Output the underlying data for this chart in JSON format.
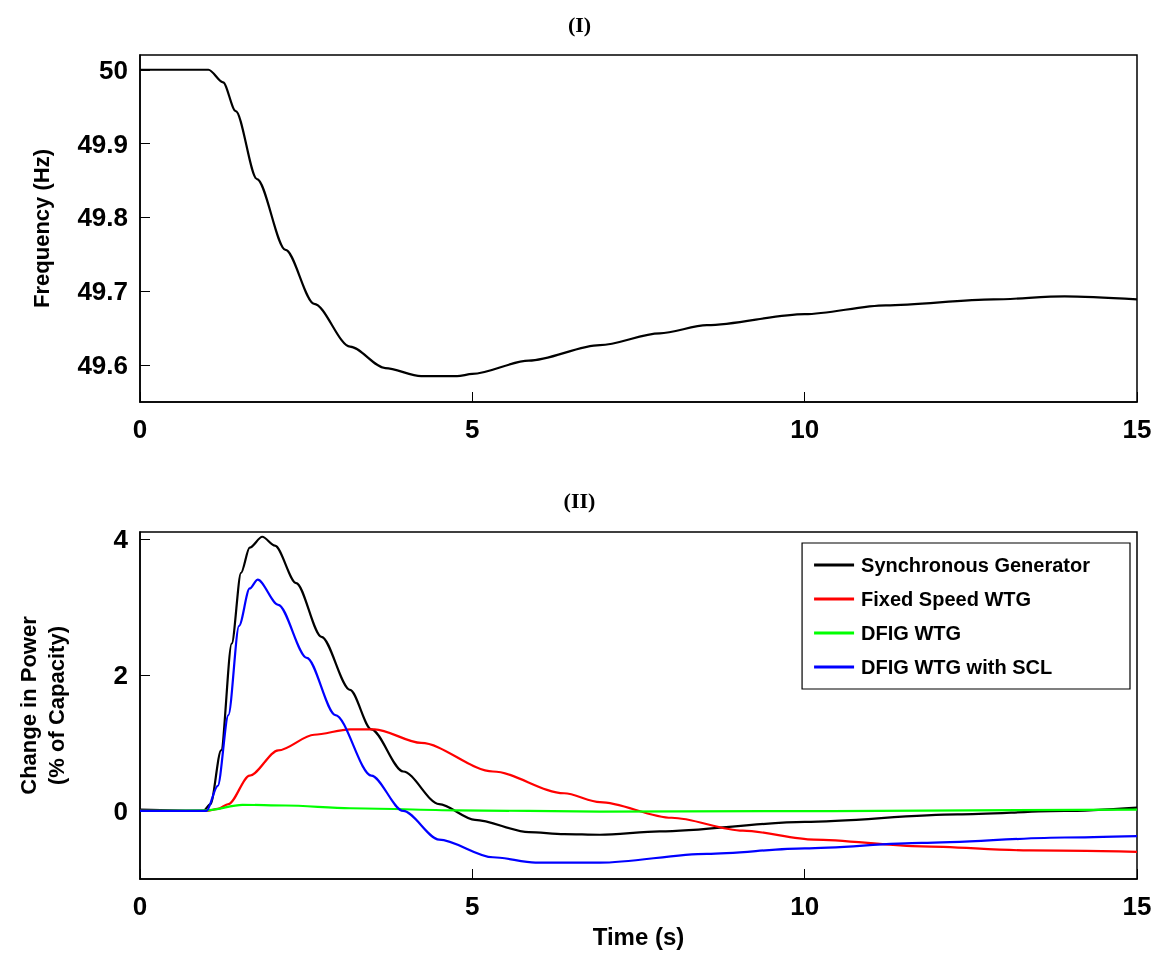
{
  "chart_data": [
    {
      "type": "line",
      "title": "(I)",
      "ylabel": "Frequency (Hz)",
      "xlim": [
        0,
        15
      ],
      "xticks": [
        0,
        5,
        10,
        15
      ],
      "ylim": [
        49.55,
        50.02
      ],
      "yticks": [
        49.6,
        49.7,
        49.8,
        49.9,
        {
          "value": 50,
          "label": "50"
        }
      ],
      "grid": false,
      "legend": false,
      "series": [
        {
          "color": "#000000",
          "x": [
            0,
            1.03,
            1.25,
            1.44,
            1.76,
            2.19,
            2.62,
            3.16,
            3.69,
            4.23,
            4.77,
            5.0,
            5.85,
            6.92,
            7.82,
            8.53,
            10.0,
            11.22,
            12.84,
            13.91,
            15.0
          ],
          "values": [
            50.0,
            50.0,
            49.983,
            49.944,
            49.852,
            49.756,
            49.683,
            49.625,
            49.596,
            49.585,
            49.585,
            49.588,
            49.606,
            49.627,
            49.643,
            49.654,
            49.669,
            49.681,
            49.689,
            49.693,
            49.689
          ]
        }
      ]
    },
    {
      "type": "line",
      "title": "(II)",
      "xlabel": "Time (s)",
      "ylabel": "Change in Power (% of Capacity)",
      "xlim": [
        0,
        15
      ],
      "xticks": [
        0,
        5,
        10,
        15
      ],
      "ylim": [
        -1,
        4.1
      ],
      "yticks": [
        0,
        2,
        4
      ],
      "grid": false,
      "legend": "top right",
      "series": [
        {
          "name": "Synchronous Generator",
          "color": "#000000",
          "x": [
            0,
            0.95,
            1.06,
            1.22,
            1.38,
            1.52,
            1.65,
            1.84,
            2.03,
            2.35,
            2.73,
            3.16,
            3.48,
            3.96,
            4.5,
            5.04,
            5.85,
            6.38,
            6.92,
            7.82,
            10.0,
            12.3,
            13.91,
            15.0
          ],
          "values": [
            0.02,
            0,
            0.1,
            0.89,
            2.46,
            3.5,
            3.87,
            4.03,
            3.9,
            3.35,
            2.56,
            1.78,
            1.2,
            0.58,
            0.1,
            -0.13,
            -0.31,
            -0.34,
            -0.35,
            -0.3,
            -0.16,
            -0.05,
            0.0,
            0.05
          ]
        },
        {
          "name": "Fixed Speed WTG",
          "color": "#ff0000",
          "x": [
            0,
            1.0,
            1.17,
            1.33,
            1.65,
            2.08,
            2.62,
            3.16,
            3.53,
            4.23,
            5.31,
            6.38,
            6.92,
            8.0,
            9.07,
            10.14,
            11.76,
            13.38,
            15.0
          ],
          "values": [
            0,
            0,
            0.03,
            0.1,
            0.52,
            0.89,
            1.12,
            1.2,
            1.2,
            1.0,
            0.58,
            0.26,
            0.13,
            -0.1,
            -0.29,
            -0.42,
            -0.52,
            -0.58,
            -0.6
          ]
        },
        {
          "name": "DFIG WTG",
          "color": "#00ff00",
          "x": [
            0,
            1.0,
            1.54,
            2.19,
            3.16,
            4.77,
            6.92,
            15.0
          ],
          "values": [
            0.0,
            0.01,
            0.09,
            0.08,
            0.04,
            0.01,
            -0.01,
            0.02
          ]
        },
        {
          "name": "DFIG WTG with SCL",
          "color": "#0000ff",
          "x": [
            0,
            1.0,
            1.17,
            1.33,
            1.49,
            1.65,
            1.77,
            2.08,
            2.51,
            2.94,
            3.48,
            3.96,
            4.5,
            5.31,
            5.95,
            6.92,
            8.53,
            10.0,
            11.76,
            13.91,
            15.0
          ],
          "values": [
            0.0,
            0,
            0.37,
            1.41,
            2.72,
            3.27,
            3.4,
            3.03,
            2.25,
            1.41,
            0.52,
            0,
            -0.42,
            -0.68,
            -0.76,
            -0.76,
            -0.63,
            -0.55,
            -0.47,
            -0.39,
            -0.37
          ]
        }
      ]
    }
  ]
}
